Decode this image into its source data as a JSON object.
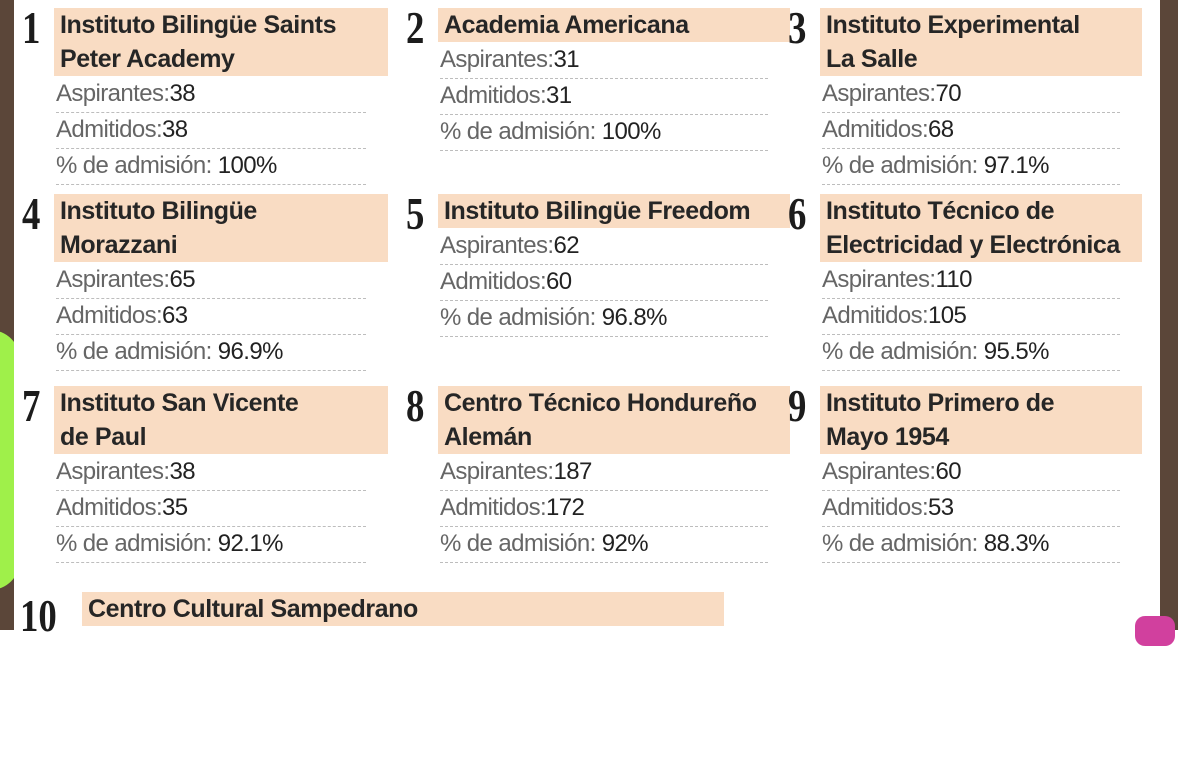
{
  "ranking": [
    {
      "rank": "1",
      "title_lines": [
        "Instituto Bilingüe Saints",
        "Peter Academy"
      ],
      "aspirantes": "38",
      "admitidos": "38",
      "admision": "100%"
    },
    {
      "rank": "2",
      "title_lines": [
        "Academia Americana"
      ],
      "aspirantes": "31",
      "admitidos": "31",
      "admision": "100%"
    },
    {
      "rank": "3",
      "title_lines": [
        "Instituto Experimental",
        "La Salle"
      ],
      "aspirantes": "70",
      "admitidos": "68",
      "admision": "97.1%"
    },
    {
      "rank": "4",
      "title_lines": [
        "Instituto Bilingüe",
        "Morazzani"
      ],
      "aspirantes": "65",
      "admitidos": "63",
      "admision": "96.9%"
    },
    {
      "rank": "5",
      "title_lines": [
        "Instituto Bilingüe Freedom"
      ],
      "aspirantes": "62",
      "admitidos": "60",
      "admision": "96.8%"
    },
    {
      "rank": "6",
      "title_lines": [
        "Instituto Técnico de",
        "Electricidad y Electrónica"
      ],
      "aspirantes": "110",
      "admitidos": "105",
      "admision": "95.5%"
    },
    {
      "rank": "7",
      "title_lines": [
        "Instituto San Vicente",
        "de Paul"
      ],
      "aspirantes": "38",
      "admitidos": "35",
      "admision": "92.1%"
    },
    {
      "rank": "8",
      "title_lines": [
        "Centro Técnico Hondureño",
        "Alemán"
      ],
      "aspirantes": "187",
      "admitidos": "172",
      "admision": "92%"
    },
    {
      "rank": "9",
      "title_lines": [
        "Instituto Primero de",
        "Mayo 1954"
      ],
      "aspirantes": "60",
      "admitidos": "53",
      "admision": "88.3%"
    },
    {
      "rank": "10",
      "title_lines": [
        "Centro Cultural Sampedrano"
      ]
    }
  ],
  "labels": {
    "aspirantes": "Aspirantes:",
    "admitidos": "Admitidos:",
    "admision": "% de admisión: "
  }
}
